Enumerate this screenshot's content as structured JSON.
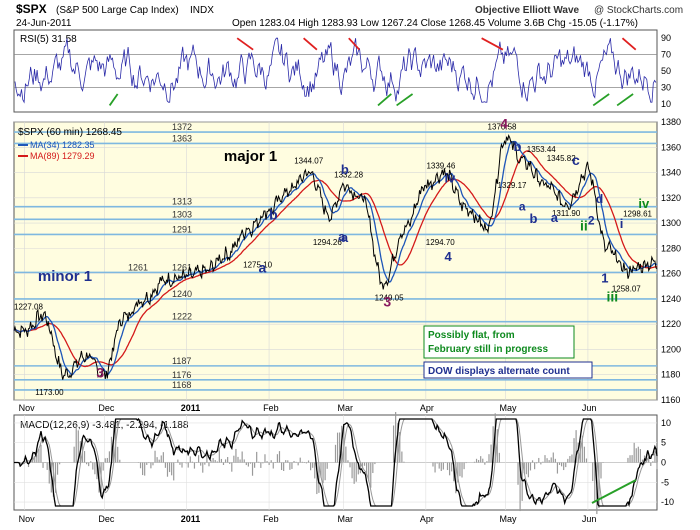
{
  "header": {
    "symbol": "$SPX",
    "name": "(S&P 500 Large Cap Index)",
    "exchange": "INDX",
    "watermark": "Objective Elliott Wave",
    "copyright": "@ StockCharts.com",
    "date": "24-Jun-2011",
    "open_label": "Open",
    "open": "1283.04",
    "high_label": "High",
    "high": "1283.93",
    "low_label": "Low",
    "low": "1267.24",
    "close_label": "Close",
    "close": "1268.45",
    "volume_label": "Volume",
    "volume": "3.6B",
    "chg_label": "Chg",
    "chg": "-15.05 (-1.17%)"
  },
  "colors": {
    "price": "#000000",
    "ma34": "#1e56b8",
    "ma89": "#d41a1a",
    "rsi": "#2a2aa8",
    "blue_wave": "#1f2f8f",
    "green_wave": "#0e8a1e",
    "purple_wave": "#8a1a60",
    "panel_bg": "#fffde0",
    "level": "#7fb8e0",
    "divergence_red": "#e02020",
    "divergence_green": "#28a028"
  },
  "chart_data": [
    {
      "type": "line",
      "panel": "rsi",
      "title": "RSI(5) 31.58",
      "yticks": [
        10,
        30,
        50,
        70,
        90
      ],
      "ylim": [
        0,
        100
      ],
      "overbought": 70,
      "oversold": 30
    },
    {
      "type": "line",
      "panel": "price",
      "title": "$SPX (60 min) 1268.45",
      "series": [
        {
          "name": "$SPX (60 min) 1268.45"
        },
        {
          "name": "MA(34) 1282.35"
        },
        {
          "name": "MA(89) 1279.29"
        }
      ],
      "x": [
        "2010-11-01",
        "2010-11-08",
        "2010-11-16",
        "2010-11-24",
        "2010-12-01",
        "2010-12-08",
        "2010-12-16",
        "2010-12-24",
        "2011-01-01",
        "2011-01-08",
        "2011-01-16",
        "2011-01-24",
        "2011-02-01",
        "2011-02-08",
        "2011-02-16",
        "2011-02-24",
        "2011-03-01",
        "2011-03-08",
        "2011-03-16",
        "2011-03-24",
        "2011-04-01",
        "2011-04-08",
        "2011-04-16",
        "2011-04-24",
        "2011-05-01",
        "2011-05-08",
        "2011-05-16",
        "2011-05-24",
        "2011-06-01",
        "2011-06-08",
        "2011-06-16",
        "2011-06-24"
      ],
      "values": [
        1215,
        1227,
        1180,
        1195,
        1180,
        1225,
        1240,
        1255,
        1258,
        1262,
        1275,
        1295,
        1310,
        1325,
        1340,
        1306,
        1330,
        1320,
        1252,
        1295,
        1330,
        1340,
        1312,
        1296,
        1368,
        1348,
        1330,
        1315,
        1342,
        1280,
        1262,
        1268
      ],
      "ylim": [
        1160,
        1380
      ],
      "yticks": [
        1160,
        1180,
        1200,
        1220,
        1240,
        1260,
        1280,
        1300,
        1320,
        1340,
        1360,
        1380
      ],
      "xticks": [
        "Nov",
        "Dec",
        "2011",
        "Feb",
        "Mar",
        "Apr",
        "May",
        "Jun"
      ],
      "levels": [
        1372,
        1363,
        1313,
        1303,
        1291,
        1261,
        1240,
        1222,
        1187,
        1176,
        1168
      ],
      "price_labels": [
        "1370.58",
        "1353.44",
        "1345.82",
        "1344.07",
        "1339.46",
        "1332.28",
        "1329.17",
        "1311.90",
        "1298.61",
        "1294.70",
        "1294.26",
        "1275.10",
        "1258.07",
        "1249.05",
        "1227.08",
        "1173.00"
      ],
      "wave_labels": [
        "major 1",
        "minor 1",
        "b",
        "a",
        "b",
        "a",
        "3",
        "4",
        "iv",
        "b",
        "a",
        "c",
        "d",
        "2",
        "ii",
        "i",
        "1",
        "iv",
        "iii",
        "4",
        "3",
        "a",
        "b",
        "a"
      ],
      "annotations": [
        "Possibly flat, from February still in progress",
        "DOW displays alternate count"
      ]
    },
    {
      "type": "line",
      "panel": "macd",
      "title": "MACD(12,26,9) -3.481, -2.294, -1.188",
      "yticks": [
        -10,
        -5,
        0,
        5,
        10
      ],
      "ylim": [
        -12,
        12
      ],
      "xticks": [
        "Nov",
        "Dec",
        "2011",
        "Feb",
        "Mar",
        "Apr",
        "May",
        "Jun"
      ]
    }
  ]
}
